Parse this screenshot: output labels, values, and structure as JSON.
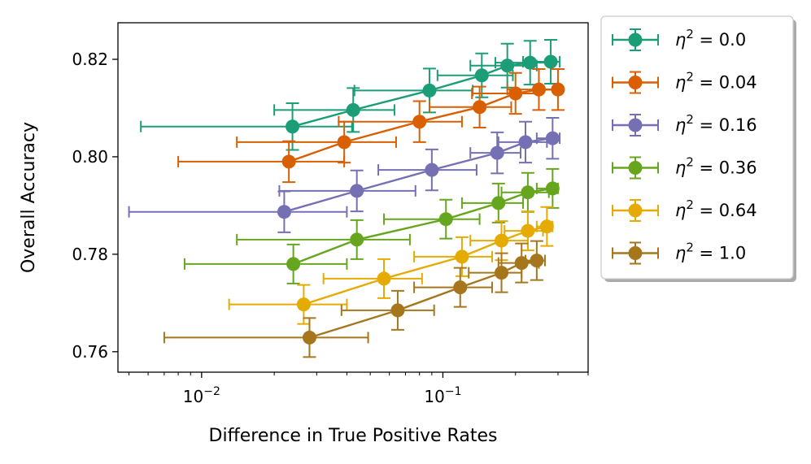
{
  "chart_data": {
    "type": "scatter",
    "title": "",
    "xlabel": "Difference in True Positive Rates",
    "ylabel": "Overall Accuracy",
    "xscale": "log",
    "xlim": [
      0.0045,
      0.4
    ],
    "ylim": [
      0.7558,
      0.8275
    ],
    "yticks": [
      0.76,
      0.78,
      0.8,
      0.82
    ],
    "ytick_labels": [
      "0.76",
      "0.78",
      "0.80",
      "0.82"
    ],
    "xticks": [
      0.01,
      0.1
    ],
    "xtick_base": "10",
    "xtick_exps": [
      "−2",
      "−1"
    ],
    "legend_position": "outside-right",
    "legend_symbol": "η",
    "series": [
      {
        "name": "0.0",
        "color": "#1b9e77",
        "x": [
          0.0238,
          0.0425,
          0.088,
          0.145,
          0.185,
          0.23,
          0.28
        ],
        "xerr_lo": [
          0.0056,
          0.02,
          0.043,
          0.095,
          0.13,
          0.165,
          0.215
        ],
        "xerr_hi": [
          0.042,
          0.063,
          0.133,
          0.195,
          0.245,
          0.283,
          0.305
        ],
        "y": [
          0.8062,
          0.8096,
          0.8136,
          0.8167,
          0.8187,
          0.8193,
          0.8195
        ],
        "yerr": [
          0.0048,
          0.0045,
          0.0045,
          0.0045,
          0.0045,
          0.0045,
          0.0045
        ]
      },
      {
        "name": "0.04",
        "color": "#d95f02",
        "x": [
          0.023,
          0.039,
          0.08,
          0.142,
          0.2,
          0.25,
          0.3
        ],
        "xerr_lo": [
          0.008,
          0.014,
          0.037,
          0.088,
          0.132,
          0.185,
          0.248
        ],
        "xerr_hi": [
          0.039,
          0.064,
          0.12,
          0.192,
          0.25,
          0.29,
          0.31
        ],
        "y": [
          0.799,
          0.803,
          0.8072,
          0.8102,
          0.813,
          0.8138,
          0.8138
        ],
        "yerr": [
          0.0042,
          0.0042,
          0.0042,
          0.0042,
          0.0042,
          0.0042,
          0.0042
        ]
      },
      {
        "name": "0.16",
        "color": "#7570b3",
        "x": [
          0.022,
          0.044,
          0.09,
          0.168,
          0.22,
          0.285
        ],
        "xerr_lo": [
          0.005,
          0.021,
          0.054,
          0.13,
          0.17,
          0.245
        ],
        "xerr_hi": [
          0.04,
          0.077,
          0.138,
          0.21,
          0.27,
          0.305
        ],
        "y": [
          0.7887,
          0.793,
          0.7973,
          0.8008,
          0.803,
          0.8038
        ],
        "yerr": [
          0.0042,
          0.0042,
          0.0042,
          0.0042,
          0.0042,
          0.0042
        ]
      },
      {
        "name": "0.36",
        "color": "#66a61e",
        "x": [
          0.024,
          0.044,
          0.103,
          0.17,
          0.225,
          0.285
        ],
        "xerr_lo": [
          0.0085,
          0.014,
          0.057,
          0.12,
          0.175,
          0.245
        ],
        "xerr_hi": [
          0.04,
          0.073,
          0.142,
          0.215,
          0.275,
          0.3
        ],
        "y": [
          0.778,
          0.783,
          0.7872,
          0.7905,
          0.7927,
          0.7935
        ],
        "yerr": [
          0.004,
          0.004,
          0.004,
          0.004,
          0.004,
          0.004
        ]
      },
      {
        "name": "0.64",
        "color": "#e6ab02",
        "x": [
          0.0265,
          0.057,
          0.12,
          0.175,
          0.225,
          0.27
        ],
        "xerr_lo": [
          0.013,
          0.032,
          0.076,
          0.13,
          0.18,
          0.245
        ],
        "xerr_hi": [
          0.04,
          0.082,
          0.16,
          0.225,
          0.26,
          0.285
        ],
        "y": [
          0.7697,
          0.775,
          0.7795,
          0.7828,
          0.7848,
          0.7857
        ],
        "yerr": [
          0.004,
          0.004,
          0.004,
          0.004,
          0.004,
          0.004
        ]
      },
      {
        "name": "1.0",
        "color": "#a6761d",
        "x": [
          0.028,
          0.065,
          0.118,
          0.175,
          0.212,
          0.245
        ],
        "xerr_lo": [
          0.007,
          0.038,
          0.076,
          0.128,
          0.17,
          0.22
        ],
        "xerr_hi": [
          0.049,
          0.092,
          0.16,
          0.212,
          0.25,
          0.265
        ],
        "y": [
          0.7629,
          0.7685,
          0.7732,
          0.7762,
          0.7782,
          0.7787
        ],
        "yerr": [
          0.004,
          0.004,
          0.004,
          0.004,
          0.004,
          0.004
        ]
      }
    ]
  }
}
